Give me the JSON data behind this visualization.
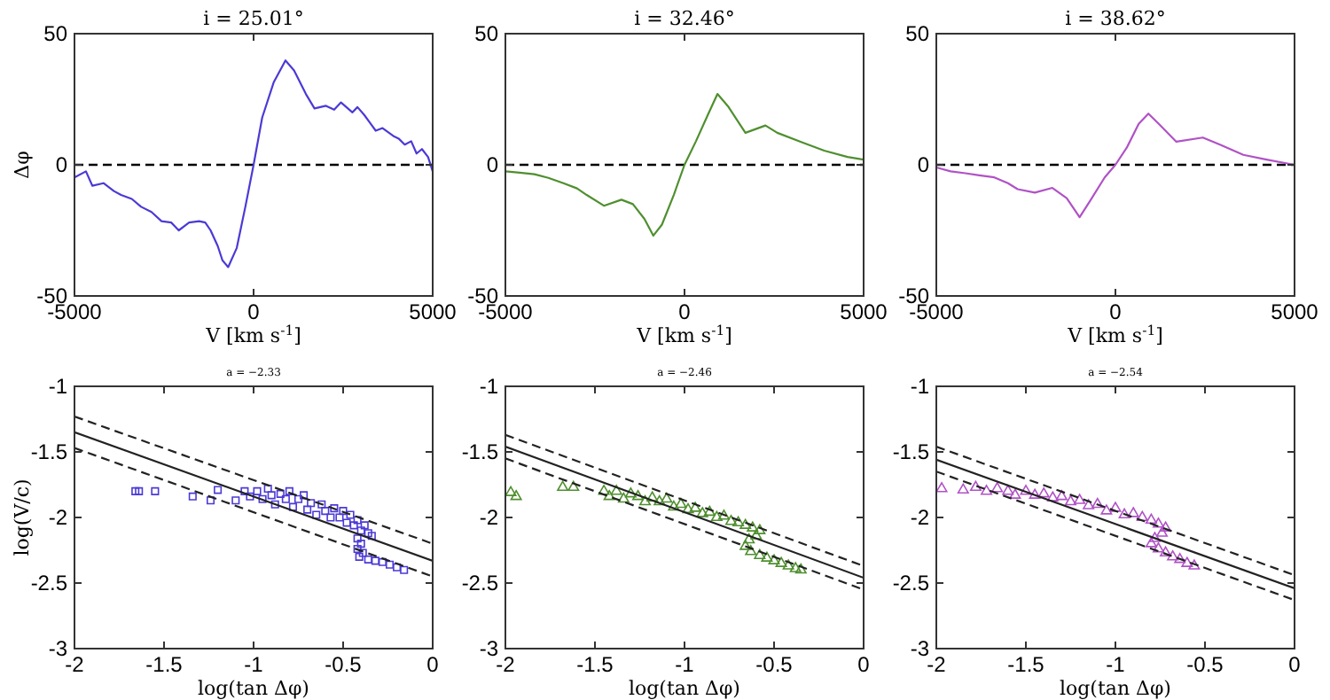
{
  "chart_data": [
    {
      "type": "line",
      "title": "i = 25.01°",
      "xlabel": "V [km s$^{-1}$]",
      "ylabel": "Δφ",
      "xlim": [
        -5000,
        5000
      ],
      "ylim": [
        -50,
        50
      ],
      "xticks": [
        -5000,
        0,
        5000
      ],
      "yticks": [
        -50,
        0,
        50
      ],
      "ref_lines": [
        {
          "axis": "y",
          "value": 0,
          "color": "#000000",
          "line_style": "dashed"
        }
      ],
      "series": [
        {
          "color": "#4b3ad6",
          "x": [
            -5000,
            -4680,
            -4500,
            -4190,
            -3900,
            -3700,
            -3400,
            -3140,
            -2850,
            -2570,
            -2300,
            -2090,
            -1800,
            -1520,
            -1350,
            -1200,
            -1000,
            -870,
            -710,
            -470,
            -230,
            0,
            240,
            560,
            890,
            1130,
            1460,
            1700,
            2020,
            2250,
            2440,
            2760,
            2900,
            3090,
            3250,
            3410,
            3600,
            3900,
            4050,
            4220,
            4400,
            4550,
            4700,
            4870,
            5000
          ],
          "values": [
            -4.8,
            -2.5,
            -8,
            -7,
            -10,
            -11.5,
            -13,
            -16,
            -18,
            -21.5,
            -22,
            -25,
            -22,
            -21.5,
            -22,
            -25,
            -31,
            -36.4,
            -39,
            -31.7,
            -16,
            0,
            18,
            31.4,
            39.8,
            36,
            27,
            21.5,
            22.5,
            21,
            23.8,
            20,
            22,
            19,
            16,
            13,
            14,
            11,
            10,
            7.7,
            9,
            4.3,
            6,
            3,
            -2.5
          ]
        }
      ]
    },
    {
      "type": "line",
      "title": "i = 32.46°",
      "xlabel": "V [km s$^{-1}$]",
      "xlim": [
        -5000,
        5000
      ],
      "ylim": [
        -50,
        50
      ],
      "xticks": [
        -5000,
        0,
        5000
      ],
      "yticks": [
        -50,
        0,
        50
      ],
      "ref_lines": [
        {
          "axis": "y",
          "value": 0,
          "color": "#000000",
          "line_style": "dashed"
        }
      ],
      "series": [
        {
          "color": "#4f8f2f",
          "x": [
            -5000,
            -4600,
            -4190,
            -3800,
            -3380,
            -3000,
            -2730,
            -2250,
            -1760,
            -1440,
            -1120,
            -870,
            -630,
            -300,
            0,
            320,
            650,
            920,
            1210,
            1700,
            2260,
            2590,
            3240,
            3900,
            4550,
            5000
          ],
          "values": [
            -2.5,
            -3,
            -3.6,
            -5,
            -7,
            -9,
            -11.5,
            -15.6,
            -13.3,
            -15,
            -20.6,
            -27,
            -22.8,
            -11.5,
            0,
            9,
            19,
            27,
            22.4,
            12.2,
            15,
            12.2,
            8.8,
            5.4,
            3,
            2
          ]
        }
      ]
    },
    {
      "type": "line",
      "title": "i = 38.62°",
      "xlabel": "V [km s$^{-1}$]",
      "xlim": [
        -5000,
        5000
      ],
      "ylim": [
        -50,
        50
      ],
      "xticks": [
        -5000,
        0,
        5000
      ],
      "yticks": [
        -50,
        0,
        50
      ],
      "ref_lines": [
        {
          "axis": "y",
          "value": 0,
          "color": "#000000",
          "line_style": "dashed"
        }
      ],
      "series": [
        {
          "color": "#b052c6",
          "x": [
            -5000,
            -4600,
            -4190,
            -3800,
            -3380,
            -3000,
            -2730,
            -2250,
            -1760,
            -1360,
            -1000,
            -710,
            -300,
            0,
            320,
            650,
            920,
            1210,
            1700,
            2440,
            2920,
            3570,
            4220,
            5000
          ],
          "values": [
            -1,
            -2.5,
            -3.2,
            -4,
            -4.8,
            -7,
            -9.3,
            -10.6,
            -8.8,
            -12.7,
            -20,
            -13.8,
            -4.8,
            0,
            6.6,
            15.6,
            19.5,
            15.6,
            8.8,
            10.4,
            7.7,
            3.8,
            2,
            0
          ]
        }
      ]
    },
    {
      "type": "scatter",
      "title": "a = −2.33",
      "xlabel": "log(tan Δφ)",
      "ylabel": "log(V/c)",
      "xlim": [
        -2,
        0
      ],
      "ylim": [
        -3,
        -1
      ],
      "xticks": [
        -2,
        -1.5,
        -1,
        -0.5,
        0
      ],
      "yticks": [
        -3,
        -2.5,
        -2,
        -1.5,
        -1
      ],
      "series": [
        {
          "color": "#4b3ad6",
          "marker": "square",
          "x": [
            -1.66,
            -1.64,
            -1.55,
            -1.34,
            -1.24,
            -1.2,
            -1.1,
            -1.05,
            -1.02,
            -0.98,
            -0.95,
            -0.92,
            -0.9,
            -0.88,
            -0.85,
            -0.82,
            -0.8,
            -0.78,
            -0.75,
            -0.72,
            -0.7,
            -0.68,
            -0.65,
            -0.62,
            -0.6,
            -0.57,
            -0.55,
            -0.52,
            -0.5,
            -0.48,
            -0.46,
            -0.44,
            -0.42,
            -0.4,
            -0.38,
            -0.36,
            -0.34,
            -0.42,
            -0.4,
            -0.42,
            -0.39,
            -0.41,
            -0.36,
            -0.32,
            -0.28,
            -0.24,
            -0.2,
            -0.16
          ],
          "values": [
            -1.8,
            -1.8,
            -1.8,
            -1.84,
            -1.87,
            -1.79,
            -1.87,
            -1.8,
            -1.84,
            -1.8,
            -1.86,
            -1.78,
            -1.83,
            -1.9,
            -1.82,
            -1.86,
            -1.8,
            -1.92,
            -1.86,
            -1.83,
            -1.94,
            -1.89,
            -1.98,
            -1.9,
            -1.95,
            -2,
            -1.93,
            -2,
            -1.95,
            -2.04,
            -1.98,
            -2.06,
            -2.02,
            -2.1,
            -2.06,
            -2.12,
            -2.14,
            -2.16,
            -2.2,
            -2.24,
            -2.27,
            -2.3,
            -2.32,
            -2.33,
            -2.34,
            -2.36,
            -2.38,
            -2.4
          ]
        },
        {
          "type": "line",
          "color": "#222222",
          "line_style": "solid",
          "x": [
            -2,
            0
          ],
          "values": [
            -1.35,
            -2.33
          ]
        },
        {
          "type": "line",
          "color": "#222222",
          "line_style": "dashed",
          "x": [
            -2,
            0
          ],
          "values": [
            -1.23,
            -2.2
          ]
        },
        {
          "type": "line",
          "color": "#222222",
          "line_style": "dashed",
          "x": [
            -2,
            0
          ],
          "values": [
            -1.47,
            -2.45
          ]
        }
      ]
    },
    {
      "type": "scatter",
      "title": "a = −2.46",
      "xlabel": "log(tan Δφ)",
      "xlim": [
        -2,
        0
      ],
      "ylim": [
        -3,
        -1
      ],
      "xticks": [
        -2,
        -1.5,
        -1,
        -0.5,
        0
      ],
      "yticks": [
        -3,
        -2.5,
        -2,
        -1.5,
        -1
      ],
      "series": [
        {
          "color": "#4f8f2f",
          "marker": "triangle",
          "x": [
            -1.97,
            -1.94,
            -1.68,
            -1.62,
            -1.45,
            -1.42,
            -1.38,
            -1.34,
            -1.3,
            -1.26,
            -1.22,
            -1.18,
            -1.14,
            -1.1,
            -1.06,
            -1.02,
            -0.98,
            -0.94,
            -0.9,
            -0.86,
            -0.82,
            -0.78,
            -0.74,
            -0.7,
            -0.66,
            -0.62,
            -0.58,
            -0.6,
            -0.64,
            -0.66,
            -0.63,
            -0.58,
            -0.54,
            -0.5,
            -0.46,
            -0.42,
            -0.38,
            -0.35
          ],
          "values": [
            -1.81,
            -1.84,
            -1.77,
            -1.77,
            -1.8,
            -1.84,
            -1.8,
            -1.86,
            -1.82,
            -1.84,
            -1.88,
            -1.85,
            -1.88,
            -1.86,
            -1.92,
            -1.9,
            -1.94,
            -1.93,
            -1.97,
            -1.96,
            -2,
            -1.99,
            -2.03,
            -2.04,
            -2.06,
            -2.08,
            -2.1,
            -2.14,
            -2.17,
            -2.22,
            -2.26,
            -2.29,
            -2.31,
            -2.33,
            -2.35,
            -2.37,
            -2.39,
            -2.4
          ]
        },
        {
          "type": "line",
          "color": "#222222",
          "line_style": "solid",
          "x": [
            -2,
            0
          ],
          "values": [
            -1.46,
            -2.46
          ]
        },
        {
          "type": "line",
          "color": "#222222",
          "line_style": "dashed",
          "x": [
            -2,
            0
          ],
          "values": [
            -1.37,
            -2.37
          ]
        },
        {
          "type": "line",
          "color": "#222222",
          "line_style": "dashed",
          "x": [
            -2,
            0
          ],
          "values": [
            -1.55,
            -2.55
          ]
        }
      ]
    },
    {
      "type": "scatter",
      "title": "a = −2.54",
      "xlabel": "log(tan Δφ)",
      "xlim": [
        -2,
        0
      ],
      "ylim": [
        -3,
        -1
      ],
      "xticks": [
        -2,
        -1.5,
        -1,
        -0.5,
        0
      ],
      "yticks": [
        -3,
        -2.5,
        -2,
        -1.5,
        -1
      ],
      "series": [
        {
          "color": "#b052c6",
          "marker": "triangle",
          "x": [
            -1.97,
            -1.85,
            -1.78,
            -1.72,
            -1.66,
            -1.6,
            -1.56,
            -1.5,
            -1.45,
            -1.4,
            -1.35,
            -1.3,
            -1.25,
            -1.2,
            -1.15,
            -1.1,
            -1.05,
            -1,
            -0.95,
            -0.9,
            -0.85,
            -0.8,
            -0.76,
            -0.72,
            -0.74,
            -0.78,
            -0.8,
            -0.76,
            -0.72,
            -0.68,
            -0.64,
            -0.6,
            -0.56
          ],
          "values": [
            -1.78,
            -1.79,
            -1.77,
            -1.8,
            -1.78,
            -1.8,
            -1.83,
            -1.8,
            -1.83,
            -1.82,
            -1.85,
            -1.84,
            -1.88,
            -1.87,
            -1.91,
            -1.9,
            -1.95,
            -1.93,
            -1.98,
            -1.97,
            -2,
            -2.02,
            -2.05,
            -2.08,
            -2.12,
            -2.16,
            -2.2,
            -2.24,
            -2.27,
            -2.3,
            -2.32,
            -2.35,
            -2.37
          ]
        },
        {
          "type": "line",
          "color": "#222222",
          "line_style": "solid",
          "x": [
            -2,
            0
          ],
          "values": [
            -1.56,
            -2.54
          ]
        },
        {
          "type": "line",
          "color": "#222222",
          "line_style": "dashed",
          "x": [
            -2,
            0
          ],
          "values": [
            -1.46,
            -2.44
          ]
        },
        {
          "type": "line",
          "color": "#222222",
          "line_style": "dashed",
          "x": [
            -2,
            0
          ],
          "values": [
            -1.65,
            -2.63
          ]
        }
      ]
    }
  ]
}
